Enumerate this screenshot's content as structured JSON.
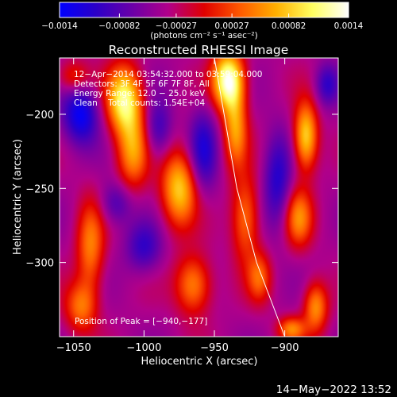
{
  "chart_data": {
    "type": "heatmap",
    "title": "Reconstructed RHESSI Image",
    "xlabel": "Heliocentric X (arcsec)",
    "ylabel": "Heliocentric Y (arcsec)",
    "xlim": [
      -1060,
      -862
    ],
    "ylim": [
      -350,
      -162
    ],
    "x_ticks": [
      -1050,
      -1000,
      -950,
      -900
    ],
    "x_tick_labels": [
      "−1050",
      "−1000",
      "−950",
      "−900"
    ],
    "y_ticks": [
      -200,
      -250,
      -300
    ],
    "y_tick_labels": [
      "−200",
      "−250",
      "−300"
    ],
    "colorbar": {
      "min": -0.0014,
      "max": 0.0014,
      "ticks": [
        -0.0014,
        -0.00082,
        -0.00027,
        0.00027,
        0.00082,
        0.0014
      ],
      "tick_labels": [
        "−0.0014",
        "−0.00082",
        "−0.00027",
        "0.00027",
        "0.00082",
        "0.0014"
      ],
      "unit_label": "(photons cm⁻² s⁻¹ asec⁻²)",
      "colormap": [
        "#0000ff",
        "#2b00c8",
        "#6a00a8",
        "#b0008a",
        "#e00000",
        "#ff5a00",
        "#ffb000",
        "#ffff60",
        "#ffffff"
      ]
    },
    "annotations": [
      "12−Apr−2014 03:54:32.000 to 03:59:04.000",
      "Detectors: 3F 4F 5F 6F 7F 8F, All",
      "Energy Range: 12.0 − 25.0 keV",
      "Clean    Total counts: 1.54E+04"
    ],
    "peak_label": "Position of Peak = [−940,−177]",
    "peak": {
      "x": -940,
      "y": -177
    },
    "limb_line": {
      "x": [
        -950,
        -934,
        -920,
        -900
      ],
      "y": [
        -162,
        -250,
        -300,
        -350
      ]
    },
    "sources": [
      {
        "x": -940,
        "y": -177,
        "sx": 8,
        "sy": 14,
        "a": 1.0
      },
      {
        "x": -935,
        "y": -210,
        "sx": 6,
        "sy": 18,
        "a": 0.55
      },
      {
        "x": -928,
        "y": -270,
        "sx": 7,
        "sy": 20,
        "a": 0.5
      },
      {
        "x": -918,
        "y": -310,
        "sx": 6,
        "sy": 12,
        "a": 0.4
      },
      {
        "x": -1014,
        "y": -190,
        "sx": 9,
        "sy": 16,
        "a": 0.85
      },
      {
        "x": -1008,
        "y": -225,
        "sx": 8,
        "sy": 18,
        "a": 0.55
      },
      {
        "x": -975,
        "y": -250,
        "sx": 9,
        "sy": 18,
        "a": 0.7
      },
      {
        "x": -965,
        "y": -315,
        "sx": 9,
        "sy": 14,
        "a": 0.55
      },
      {
        "x": -1038,
        "y": -290,
        "sx": 7,
        "sy": 22,
        "a": 0.5
      },
      {
        "x": -1045,
        "y": -330,
        "sx": 8,
        "sy": 12,
        "a": 0.45
      },
      {
        "x": -885,
        "y": -215,
        "sx": 6,
        "sy": 16,
        "a": 0.75
      },
      {
        "x": -890,
        "y": -270,
        "sx": 7,
        "sy": 14,
        "a": 0.5
      },
      {
        "x": -878,
        "y": -330,
        "sx": 6,
        "sy": 12,
        "a": 0.55
      },
      {
        "x": -895,
        "y": -345,
        "sx": 7,
        "sy": 6,
        "a": 0.5
      },
      {
        "x": -1050,
        "y": -175,
        "sx": 8,
        "sy": 8,
        "a": 0.35
      },
      {
        "x": -1045,
        "y": -200,
        "sx": 9,
        "sy": 14,
        "a": -0.55
      },
      {
        "x": -990,
        "y": -210,
        "sx": 7,
        "sy": 14,
        "a": -0.35
      },
      {
        "x": -958,
        "y": -225,
        "sx": 7,
        "sy": 20,
        "a": -0.4
      },
      {
        "x": -905,
        "y": -245,
        "sx": 7,
        "sy": 22,
        "a": -0.4
      },
      {
        "x": -1000,
        "y": -290,
        "sx": 9,
        "sy": 12,
        "a": -0.35
      },
      {
        "x": -1020,
        "y": -260,
        "sx": 8,
        "sy": 10,
        "a": -0.3
      },
      {
        "x": -870,
        "y": -180,
        "sx": 6,
        "sy": 10,
        "a": -0.35
      }
    ],
    "grid": false
  },
  "footer": {
    "timestamp": "14−May−2022 13:52"
  }
}
